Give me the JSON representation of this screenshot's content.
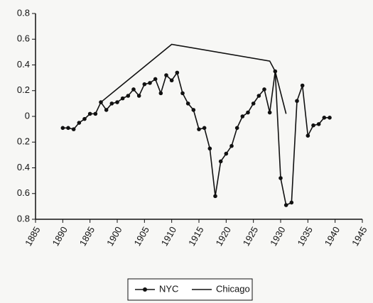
{
  "chart_data": {
    "type": "line",
    "series": [
      {
        "name": "NYC",
        "color": "#111111",
        "marker": true,
        "x": [
          1890,
          1891,
          1892,
          1893,
          1894,
          1895,
          1896,
          1897,
          1898,
          1899,
          1900,
          1901,
          1902,
          1903,
          1904,
          1905,
          1906,
          1907,
          1908,
          1909,
          1910,
          1911,
          1912,
          1913,
          1914,
          1915,
          1916,
          1917,
          1918,
          1919,
          1920,
          1921,
          1922,
          1923,
          1924,
          1925,
          1926,
          1927,
          1928,
          1929,
          1930,
          1931,
          1932,
          1933,
          1934,
          1935,
          1936,
          1937,
          1938,
          1939
        ],
        "values": [
          -0.09,
          -0.09,
          -0.1,
          -0.05,
          -0.02,
          0.02,
          0.02,
          0.11,
          0.05,
          0.1,
          0.11,
          0.14,
          0.16,
          0.21,
          0.16,
          0.25,
          0.26,
          0.29,
          0.18,
          0.32,
          0.28,
          0.34,
          0.18,
          0.1,
          0.05,
          -0.1,
          -0.09,
          -0.25,
          -0.62,
          -0.35,
          -0.29,
          -0.23,
          -0.09,
          0.0,
          0.03,
          0.1,
          0.16,
          0.21,
          0.03,
          0.35,
          -0.48,
          -0.69,
          -0.67,
          0.12,
          0.24,
          -0.15,
          -0.07,
          -0.06,
          -0.01,
          -0.01
        ]
      },
      {
        "name": "Chicago",
        "color": "#111111",
        "marker": false,
        "x": [
          1897,
          1910,
          1928,
          1929,
          1931
        ],
        "values": [
          0.11,
          0.56,
          0.43,
          0.35,
          0.02
        ]
      }
    ],
    "xlim": [
      1885,
      1945
    ],
    "xticks": [
      1885,
      1890,
      1895,
      1900,
      1905,
      1910,
      1915,
      1920,
      1925,
      1930,
      1935,
      1940,
      1945
    ],
    "ylim": [
      -0.8,
      0.8
    ],
    "yticks": [
      {
        "value": -0.8,
        "label": "0.8"
      },
      {
        "value": -0.6,
        "label": "0.6"
      },
      {
        "value": -0.4,
        "label": "0.4"
      },
      {
        "value": -0.2,
        "label": "0.2"
      },
      0,
      0.2,
      0.4,
      0.6,
      0.8
    ],
    "legend": "bottom"
  }
}
